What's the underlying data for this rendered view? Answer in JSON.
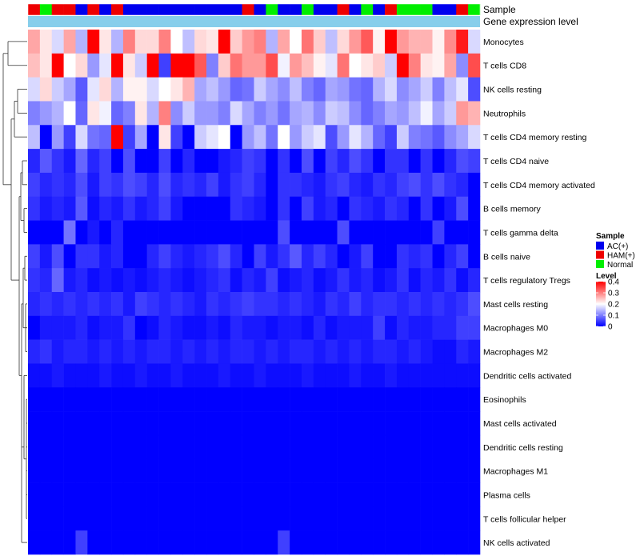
{
  "chart_data": {
    "type": "heatmap",
    "title": "",
    "annotation_rows": [
      {
        "label": "Sample",
        "values": [
          "HAM(+)",
          "Normal",
          "HAM(+)",
          "HAM(+)",
          "AC(+)",
          "HAM(+)",
          "AC(+)",
          "HAM(+)",
          "AC(+)",
          "AC(+)",
          "AC(+)",
          "AC(+)",
          "AC(+)",
          "AC(+)",
          "AC(+)",
          "AC(+)",
          "AC(+)",
          "AC(+)",
          "HAM(+)",
          "AC(+)",
          "Normal",
          "AC(+)",
          "AC(+)",
          "Normal",
          "AC(+)",
          "AC(+)",
          "HAM(+)",
          "AC(+)",
          "Normal",
          "AC(+)",
          "HAM(+)",
          "Normal",
          "Normal",
          "Normal",
          "AC(+)",
          "AC(+)",
          "HAM(+)",
          "Normal"
        ]
      },
      {
        "label": "Gene expression level",
        "values": "constant"
      }
    ],
    "rows": [
      {
        "label": "Monocytes",
        "values": [
          0.27,
          0.22,
          0.17,
          0.27,
          0.14,
          0.4,
          0.22,
          0.14,
          0.3,
          0.23,
          0.23,
          0.3,
          0.2,
          0.15,
          0.23,
          0.22,
          0.4,
          0.24,
          0.28,
          0.3,
          0.14,
          0.27,
          0.2,
          0.31,
          0.24,
          0.15,
          0.23,
          0.28,
          0.33,
          0.21,
          0.4,
          0.28,
          0.26,
          0.26,
          0.21,
          0.29,
          0.38,
          0.17
        ]
      },
      {
        "label": "T cells CD8",
        "values": [
          0.25,
          0.22,
          0.4,
          0.2,
          0.23,
          0.12,
          0.18,
          0.4,
          0.22,
          0.16,
          0.4,
          0.05,
          0.4,
          0.4,
          0.33,
          0.1,
          0.24,
          0.31,
          0.28,
          0.28,
          0.34,
          0.19,
          0.28,
          0.25,
          0.21,
          0.18,
          0.31,
          0.2,
          0.22,
          0.24,
          0.16,
          0.4,
          0.3,
          0.22,
          0.21,
          0.27,
          0.11,
          0.34
        ]
      },
      {
        "label": "NK cells resting",
        "values": [
          0.17,
          0.23,
          0.16,
          0.13,
          0.07,
          0.18,
          0.23,
          0.14,
          0.21,
          0.21,
          0.17,
          0.2,
          0.22,
          0.26,
          0.13,
          0.15,
          0.12,
          0.08,
          0.09,
          0.16,
          0.13,
          0.11,
          0.15,
          0.1,
          0.08,
          0.13,
          0.12,
          0.09,
          0.08,
          0.14,
          0.17,
          0.11,
          0.13,
          0.16,
          0.1,
          0.15,
          0.18,
          0.06
        ]
      },
      {
        "label": "Neutrophils",
        "values": [
          0.1,
          0.12,
          0.14,
          0.2,
          0.08,
          0.22,
          0.19,
          0.08,
          0.1,
          0.22,
          0.14,
          0.3,
          0.11,
          0.16,
          0.12,
          0.12,
          0.1,
          0.17,
          0.13,
          0.1,
          0.12,
          0.09,
          0.13,
          0.14,
          0.11,
          0.16,
          0.15,
          0.11,
          0.08,
          0.1,
          0.13,
          0.12,
          0.15,
          0.19,
          0.13,
          0.16,
          0.28,
          0.26
        ]
      },
      {
        "label": "T cells CD4 memory resting",
        "values": [
          0.15,
          0.0,
          0.12,
          0.05,
          0.17,
          0.09,
          0.08,
          0.4,
          0.05,
          0.13,
          0.0,
          0.22,
          0.05,
          0.0,
          0.16,
          0.18,
          0.2,
          0.0,
          0.12,
          0.15,
          0.09,
          0.2,
          0.12,
          0.16,
          0.18,
          0.06,
          0.12,
          0.18,
          0.14,
          0.08,
          0.05,
          0.16,
          0.1,
          0.09,
          0.07,
          0.11,
          0.13,
          0.17
        ]
      },
      {
        "label": "T cells CD4 naive",
        "values": [
          0.03,
          0.07,
          0.04,
          0.02,
          0.08,
          0.03,
          0.05,
          0.0,
          0.06,
          0.0,
          0.0,
          0.05,
          0.0,
          0.03,
          0.0,
          0.0,
          0.02,
          0.03,
          0.05,
          0.04,
          0.0,
          0.04,
          0.0,
          0.06,
          0.0,
          0.05,
          0.03,
          0.06,
          0.04,
          0.0,
          0.04,
          0.04,
          0.0,
          0.04,
          0.0,
          0.03,
          0.06,
          0.05
        ]
      },
      {
        "label": "T cells CD4 memory activated",
        "values": [
          0.05,
          0.03,
          0.04,
          0.03,
          0.06,
          0.02,
          0.05,
          0.04,
          0.06,
          0.05,
          0.03,
          0.06,
          0.03,
          0.04,
          0.03,
          0.05,
          0.02,
          0.04,
          0.05,
          0.03,
          0.0,
          0.04,
          0.04,
          0.03,
          0.02,
          0.04,
          0.05,
          0.03,
          0.02,
          0.04,
          0.03,
          0.05,
          0.06,
          0.04,
          0.06,
          0.04,
          0.03,
          0.0
        ]
      },
      {
        "label": "B cells memory",
        "values": [
          0.04,
          0.02,
          0.03,
          0.02,
          0.07,
          0.01,
          0.03,
          0.02,
          0.04,
          0.02,
          0.03,
          0.05,
          0.02,
          0.0,
          0.0,
          0.0,
          0.0,
          0.04,
          0.03,
          0.02,
          0.0,
          0.04,
          0.0,
          0.05,
          0.02,
          0.03,
          0.0,
          0.04,
          0.03,
          0.02,
          0.04,
          0.03,
          0.0,
          0.04,
          0.0,
          0.02,
          0.06,
          0.0
        ]
      },
      {
        "label": "T cells gamma delta",
        "values": [
          0.0,
          0.0,
          0.0,
          0.09,
          0.0,
          0.02,
          0.0,
          0.03,
          0.0,
          0.0,
          0.0,
          0.0,
          0.0,
          0.0,
          0.0,
          0.0,
          0.0,
          0.0,
          0.0,
          0.0,
          0.0,
          0.06,
          0.0,
          0.0,
          0.0,
          0.0,
          0.06,
          0.0,
          0.0,
          0.0,
          0.0,
          0.0,
          0.0,
          0.0,
          0.05,
          0.0,
          0.0,
          0.0
        ]
      },
      {
        "label": "B cells naive",
        "values": [
          0.05,
          0.02,
          0.06,
          0.0,
          0.04,
          0.04,
          0.02,
          0.03,
          0.0,
          0.0,
          0.03,
          0.05,
          0.03,
          0.02,
          0.03,
          0.04,
          0.06,
          0.03,
          0.0,
          0.05,
          0.02,
          0.04,
          0.07,
          0.03,
          0.05,
          0.03,
          0.0,
          0.02,
          0.05,
          0.0,
          0.0,
          0.04,
          0.03,
          0.04,
          0.0,
          0.03,
          0.05,
          0.0
        ]
      },
      {
        "label": "T cells regulatory  Tregs",
        "values": [
          0.04,
          0.03,
          0.08,
          0.02,
          0.03,
          0.01,
          0.02,
          0.01,
          0.02,
          0.01,
          0.02,
          0.03,
          0.02,
          0.01,
          0.02,
          0.03,
          0.04,
          0.01,
          0.03,
          0.02,
          0.05,
          0.01,
          0.02,
          0.03,
          0.01,
          0.02,
          0.04,
          0.02,
          0.03,
          0.01,
          0.02,
          0.04,
          0.01,
          0.03,
          0.02,
          0.04,
          0.01,
          0.03
        ]
      },
      {
        "label": "Mast cells resting",
        "values": [
          0.03,
          0.04,
          0.03,
          0.04,
          0.03,
          0.04,
          0.03,
          0.04,
          0.02,
          0.05,
          0.04,
          0.03,
          0.04,
          0.03,
          0.02,
          0.04,
          0.03,
          0.04,
          0.05,
          0.04,
          0.04,
          0.03,
          0.04,
          0.03,
          0.02,
          0.04,
          0.03,
          0.05,
          0.03,
          0.04,
          0.04,
          0.03,
          0.04,
          0.03,
          0.04,
          0.03,
          0.04,
          0.06
        ]
      },
      {
        "label": "Macrophages M0",
        "values": [
          0.0,
          0.02,
          0.02,
          0.02,
          0.03,
          0.01,
          0.02,
          0.02,
          0.04,
          0.0,
          0.01,
          0.03,
          0.02,
          0.01,
          0.01,
          0.02,
          0.01,
          0.03,
          0.02,
          0.02,
          0.01,
          0.02,
          0.02,
          0.01,
          0.03,
          0.01,
          0.02,
          0.02,
          0.02,
          0.05,
          0.01,
          0.03,
          0.02,
          0.02,
          0.03,
          0.03,
          0.05,
          0.05
        ]
      },
      {
        "label": "Macrophages M2",
        "values": [
          0.03,
          0.04,
          0.02,
          0.03,
          0.03,
          0.02,
          0.03,
          0.02,
          0.03,
          0.02,
          0.03,
          0.03,
          0.02,
          0.03,
          0.02,
          0.03,
          0.02,
          0.03,
          0.03,
          0.02,
          0.03,
          0.02,
          0.03,
          0.03,
          0.02,
          0.03,
          0.02,
          0.03,
          0.02,
          0.03,
          0.03,
          0.02,
          0.03,
          0.02,
          0.01,
          0.01,
          0.03,
          0.02
        ]
      },
      {
        "label": "Dendritic cells activated",
        "values": [
          0.01,
          0.01,
          0.02,
          0.01,
          0.01,
          0.01,
          0.02,
          0.01,
          0.01,
          0.02,
          0.01,
          0.01,
          0.02,
          0.01,
          0.01,
          0.01,
          0.02,
          0.01,
          0.01,
          0.02,
          0.01,
          0.01,
          0.01,
          0.02,
          0.01,
          0.01,
          0.01,
          0.02,
          0.01,
          0.01,
          0.02,
          0.01,
          0.01,
          0.01,
          0.01,
          0.01,
          0.01,
          0.01
        ]
      },
      {
        "label": "Eosinophils",
        "values": [
          0,
          0,
          0,
          0,
          0,
          0,
          0,
          0,
          0,
          0,
          0,
          0,
          0,
          0,
          0,
          0,
          0,
          0,
          0,
          0,
          0,
          0,
          0,
          0,
          0,
          0,
          0,
          0,
          0,
          0,
          0,
          0,
          0,
          0,
          0,
          0,
          0,
          0
        ]
      },
      {
        "label": "Mast cells activated",
        "values": [
          0,
          0,
          0,
          0,
          0,
          0,
          0,
          0,
          0,
          0,
          0,
          0,
          0,
          0,
          0,
          0,
          0,
          0,
          0,
          0,
          0,
          0,
          0,
          0,
          0,
          0,
          0,
          0,
          0,
          0,
          0,
          0,
          0,
          0,
          0,
          0,
          0,
          0
        ]
      },
      {
        "label": "Dendritic cells resting",
        "values": [
          0,
          0,
          0,
          0,
          0,
          0,
          0,
          0,
          0,
          0,
          0,
          0,
          0,
          0,
          0,
          0,
          0,
          0,
          0,
          0,
          0,
          0,
          0,
          0,
          0,
          0,
          0,
          0,
          0,
          0,
          0,
          0,
          0,
          0,
          0,
          0,
          0,
          0
        ]
      },
      {
        "label": "Macrophages M1",
        "values": [
          0,
          0,
          0,
          0,
          0,
          0,
          0,
          0,
          0,
          0,
          0,
          0,
          0,
          0,
          0,
          0,
          0,
          0,
          0,
          0,
          0,
          0,
          0,
          0,
          0,
          0,
          0,
          0,
          0,
          0,
          0,
          0,
          0,
          0,
          0,
          0,
          0,
          0
        ]
      },
      {
        "label": "Plasma cells",
        "values": [
          0,
          0,
          0,
          0,
          0,
          0,
          0,
          0,
          0,
          0,
          0,
          0,
          0,
          0,
          0,
          0,
          0,
          0,
          0,
          0,
          0,
          0,
          0,
          0,
          0,
          0,
          0,
          0,
          0,
          0,
          0,
          0,
          0,
          0,
          0,
          0,
          0,
          0
        ]
      },
      {
        "label": "T cells follicular helper",
        "values": [
          0,
          0,
          0,
          0,
          0,
          0,
          0,
          0,
          0,
          0,
          0,
          0,
          0,
          0,
          0,
          0,
          0,
          0,
          0,
          0,
          0,
          0,
          0,
          0,
          0,
          0,
          0,
          0,
          0,
          0,
          0,
          0,
          0,
          0,
          0,
          0,
          0,
          0
        ]
      },
      {
        "label": "NK cells activated",
        "values": [
          0,
          0,
          0,
          0,
          0.05,
          0,
          0,
          0,
          0,
          0,
          0,
          0,
          0,
          0,
          0,
          0,
          0,
          0,
          0,
          0,
          0,
          0.05,
          0,
          0,
          0,
          0,
          0,
          0,
          0,
          0,
          0,
          0,
          0,
          0,
          0,
          0,
          0,
          0
        ]
      }
    ],
    "legend_sample": {
      "title": "Sample",
      "entries": [
        {
          "label": "AC(+)",
          "color": "#0000ee"
        },
        {
          "label": "HAM(+)",
          "color": "#ee0000"
        },
        {
          "label": "Normal",
          "color": "#00ee00"
        }
      ]
    },
    "legend_level": {
      "title": "Level",
      "ticks": [
        "0.4",
        "0.3",
        "0.2",
        "0.1",
        "0"
      ],
      "range": [
        0,
        0.4
      ]
    },
    "colors": {
      "low": "#0000ff",
      "mid": "#ffffff",
      "high": "#ff0000",
      "gene_bar": "#87ceeb"
    }
  }
}
